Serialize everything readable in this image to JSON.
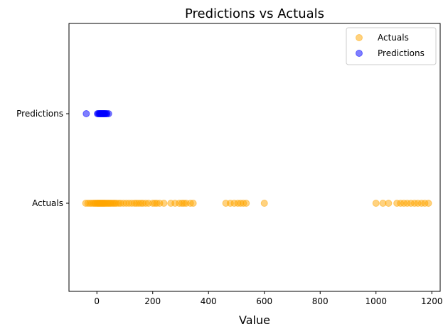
{
  "chart_data": {
    "type": "scatter",
    "title": "Predictions vs Actuals",
    "xlabel": "Value",
    "ylabel": "",
    "xlim": [
      -100,
      1230
    ],
    "x_ticks": [
      0,
      200,
      400,
      600,
      800,
      1000,
      1200
    ],
    "y_categories": [
      "Actuals",
      "Predictions"
    ],
    "legend_position": "top-right",
    "grid": false,
    "series": [
      {
        "name": "Actuals",
        "color": "#ffa500",
        "y": "Actuals",
        "x": [
          -40,
          -32,
          -25,
          -18,
          -12,
          -8,
          -4,
          0,
          3,
          6,
          9,
          12,
          15,
          18,
          21,
          24,
          27,
          30,
          34,
          38,
          42,
          46,
          50,
          55,
          60,
          65,
          70,
          78,
          85,
          95,
          105,
          115,
          125,
          135,
          142,
          150,
          158,
          165,
          175,
          185,
          200,
          208,
          215,
          225,
          240,
          265,
          280,
          295,
          305,
          312,
          320,
          335,
          345,
          462,
          478,
          492,
          505,
          515,
          525,
          535,
          600,
          1000,
          1025,
          1045,
          1075,
          1088,
          1100,
          1112,
          1125,
          1138,
          1150,
          1163,
          1175,
          1188
        ]
      },
      {
        "name": "Predictions",
        "color": "#0000ff",
        "y": "Predictions",
        "x": [
          -38,
          2,
          5,
          8,
          10,
          12,
          14,
          16,
          18,
          20,
          22,
          24,
          26,
          28,
          30,
          33,
          36,
          42
        ]
      }
    ]
  }
}
